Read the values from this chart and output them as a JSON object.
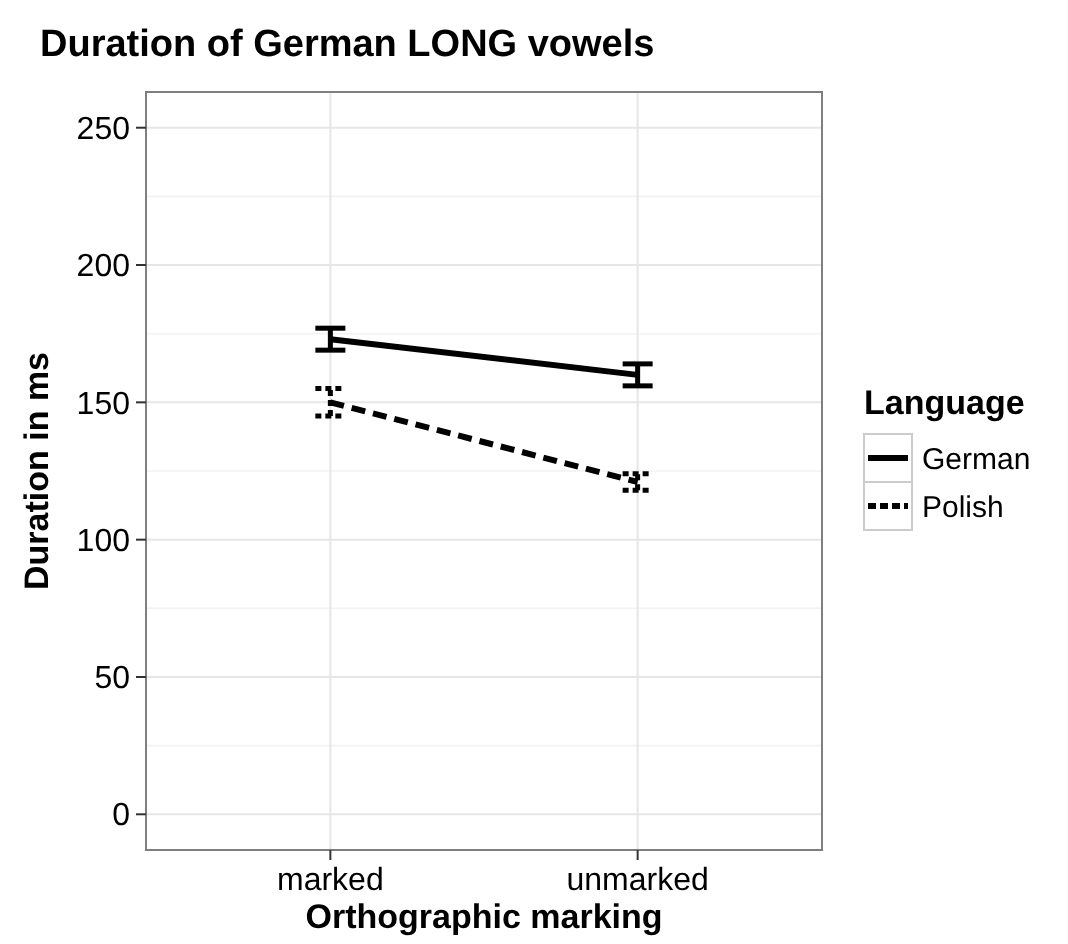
{
  "chart_data": {
    "type": "line",
    "title": "Duration of German LONG vowels",
    "xlabel": "Orthographic marking",
    "ylabel": "Duration in ms",
    "legend_title": "Language",
    "categories": [
      "marked",
      "unmarked"
    ],
    "series": [
      {
        "name": "German",
        "color": "#000000",
        "values": [
          173,
          160
        ],
        "errors": [
          4,
          4
        ],
        "line_style": "solid"
      },
      {
        "name": "Polish",
        "color": "#000000",
        "values": [
          150,
          121
        ],
        "errors": [
          5,
          3
        ],
        "line_style": "dashed"
      }
    ],
    "ylim": [
      -13,
      263
    ],
    "yticks": [
      0,
      50,
      100,
      150,
      200,
      250
    ],
    "grid": true,
    "legend": "right"
  }
}
